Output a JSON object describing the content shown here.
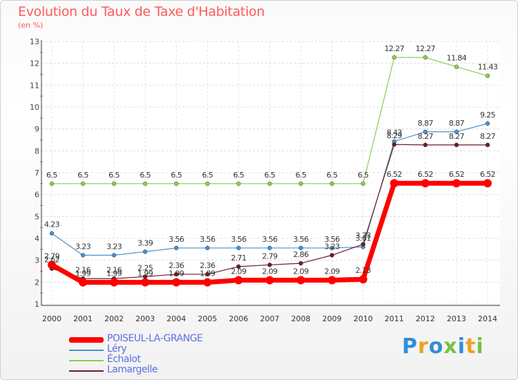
{
  "title": "Evolution du Taux de Taxe d'Habitation",
  "unit_label": "(en %)",
  "logo": {
    "text": "Proxiti"
  },
  "chart_data": {
    "type": "line",
    "ylim": [
      1,
      13
    ],
    "yticks": [
      1,
      2,
      3,
      4,
      5,
      6,
      7,
      8,
      9,
      10,
      11,
      12,
      13
    ],
    "x": [
      "2000",
      "2001",
      "2002",
      "2003",
      "2004",
      "2005",
      "2006",
      "2007",
      "2008",
      "2009",
      "2010",
      "2011",
      "2012",
      "2013",
      "2014"
    ],
    "grid": true,
    "legend_position": "bottom-left",
    "series": [
      {
        "name": "Léry",
        "color": "#4a90cc",
        "width": 1.2,
        "marker": 3,
        "values": [
          4.23,
          3.23,
          3.23,
          3.39,
          3.56,
          3.56,
          3.56,
          3.56,
          3.56,
          3.56,
          3.61,
          8.43,
          8.87,
          8.87,
          9.25
        ]
      },
      {
        "name": "Échalot",
        "color": "#8ccc50",
        "width": 1.2,
        "marker": 3,
        "values": [
          6.5,
          6.5,
          6.5,
          6.5,
          6.5,
          6.5,
          6.5,
          6.5,
          6.5,
          6.5,
          6.5,
          12.27,
          12.27,
          11.84,
          11.43
        ]
      },
      {
        "name": "Lamargelle",
        "color": "#6b1e26",
        "width": 1.2,
        "marker": 3,
        "values": [
          2.62,
          2.16,
          2.16,
          2.25,
          2.36,
          2.36,
          2.71,
          2.79,
          2.86,
          3.23,
          3.73,
          8.29,
          8.27,
          8.27,
          8.27
        ]
      },
      {
        "name": "POISEUL-LA-GRANGE",
        "color": "#ff0000",
        "width": 7,
        "marker": 6,
        "values": [
          2.79,
          1.99,
          1.99,
          1.99,
          1.99,
          1.99,
          2.09,
          2.09,
          2.09,
          2.09,
          2.13,
          6.52,
          6.52,
          6.52,
          6.52
        ]
      }
    ],
    "data_labels": [
      {
        "series": "Léry",
        "values": [
          "4.23",
          "3.23",
          "3.23",
          "3.39",
          "3.56",
          "3.56",
          "3.56",
          "3.56",
          "3.56",
          "3.56",
          "3.61",
          "8.43",
          "8.87",
          "8.87",
          "9.25"
        ]
      },
      {
        "series": "Échalot",
        "values": [
          "6.5",
          "6.5",
          "6.5",
          "6.5",
          "6.5",
          "6.5",
          "6.5",
          "6.5",
          "6.5",
          "6.5",
          "6.5",
          "12.27",
          "12.27",
          "11.84",
          "11.43"
        ]
      },
      {
        "series": "Lamargelle",
        "values": [
          "2.62",
          "2.16",
          "2.16",
          "2.25",
          "2.36",
          "2.36",
          "2.71",
          "2.79",
          "2.86",
          "3.23",
          "3.73",
          "8.29",
          "8.27",
          "8.27",
          "8.27"
        ]
      },
      {
        "series": "POISEUL-LA-GRANGE",
        "values": [
          "2.79",
          "1.99",
          "1.99",
          "1.99",
          "1.99",
          "1.99",
          "2.09",
          "2.09",
          "2.09",
          "2.09",
          "2.13",
          "6.52",
          "6.52",
          "6.52",
          "6.52"
        ]
      }
    ]
  },
  "legend": [
    {
      "label": "POISEUL-LA-GRANGE",
      "color": "#ff0000",
      "thick": true
    },
    {
      "label": "Léry",
      "color": "#4a90cc",
      "thick": false
    },
    {
      "label": "Échalot",
      "color": "#8ccc50",
      "thick": false
    },
    {
      "label": "Lamargelle",
      "color": "#6b1e26",
      "thick": false
    }
  ]
}
